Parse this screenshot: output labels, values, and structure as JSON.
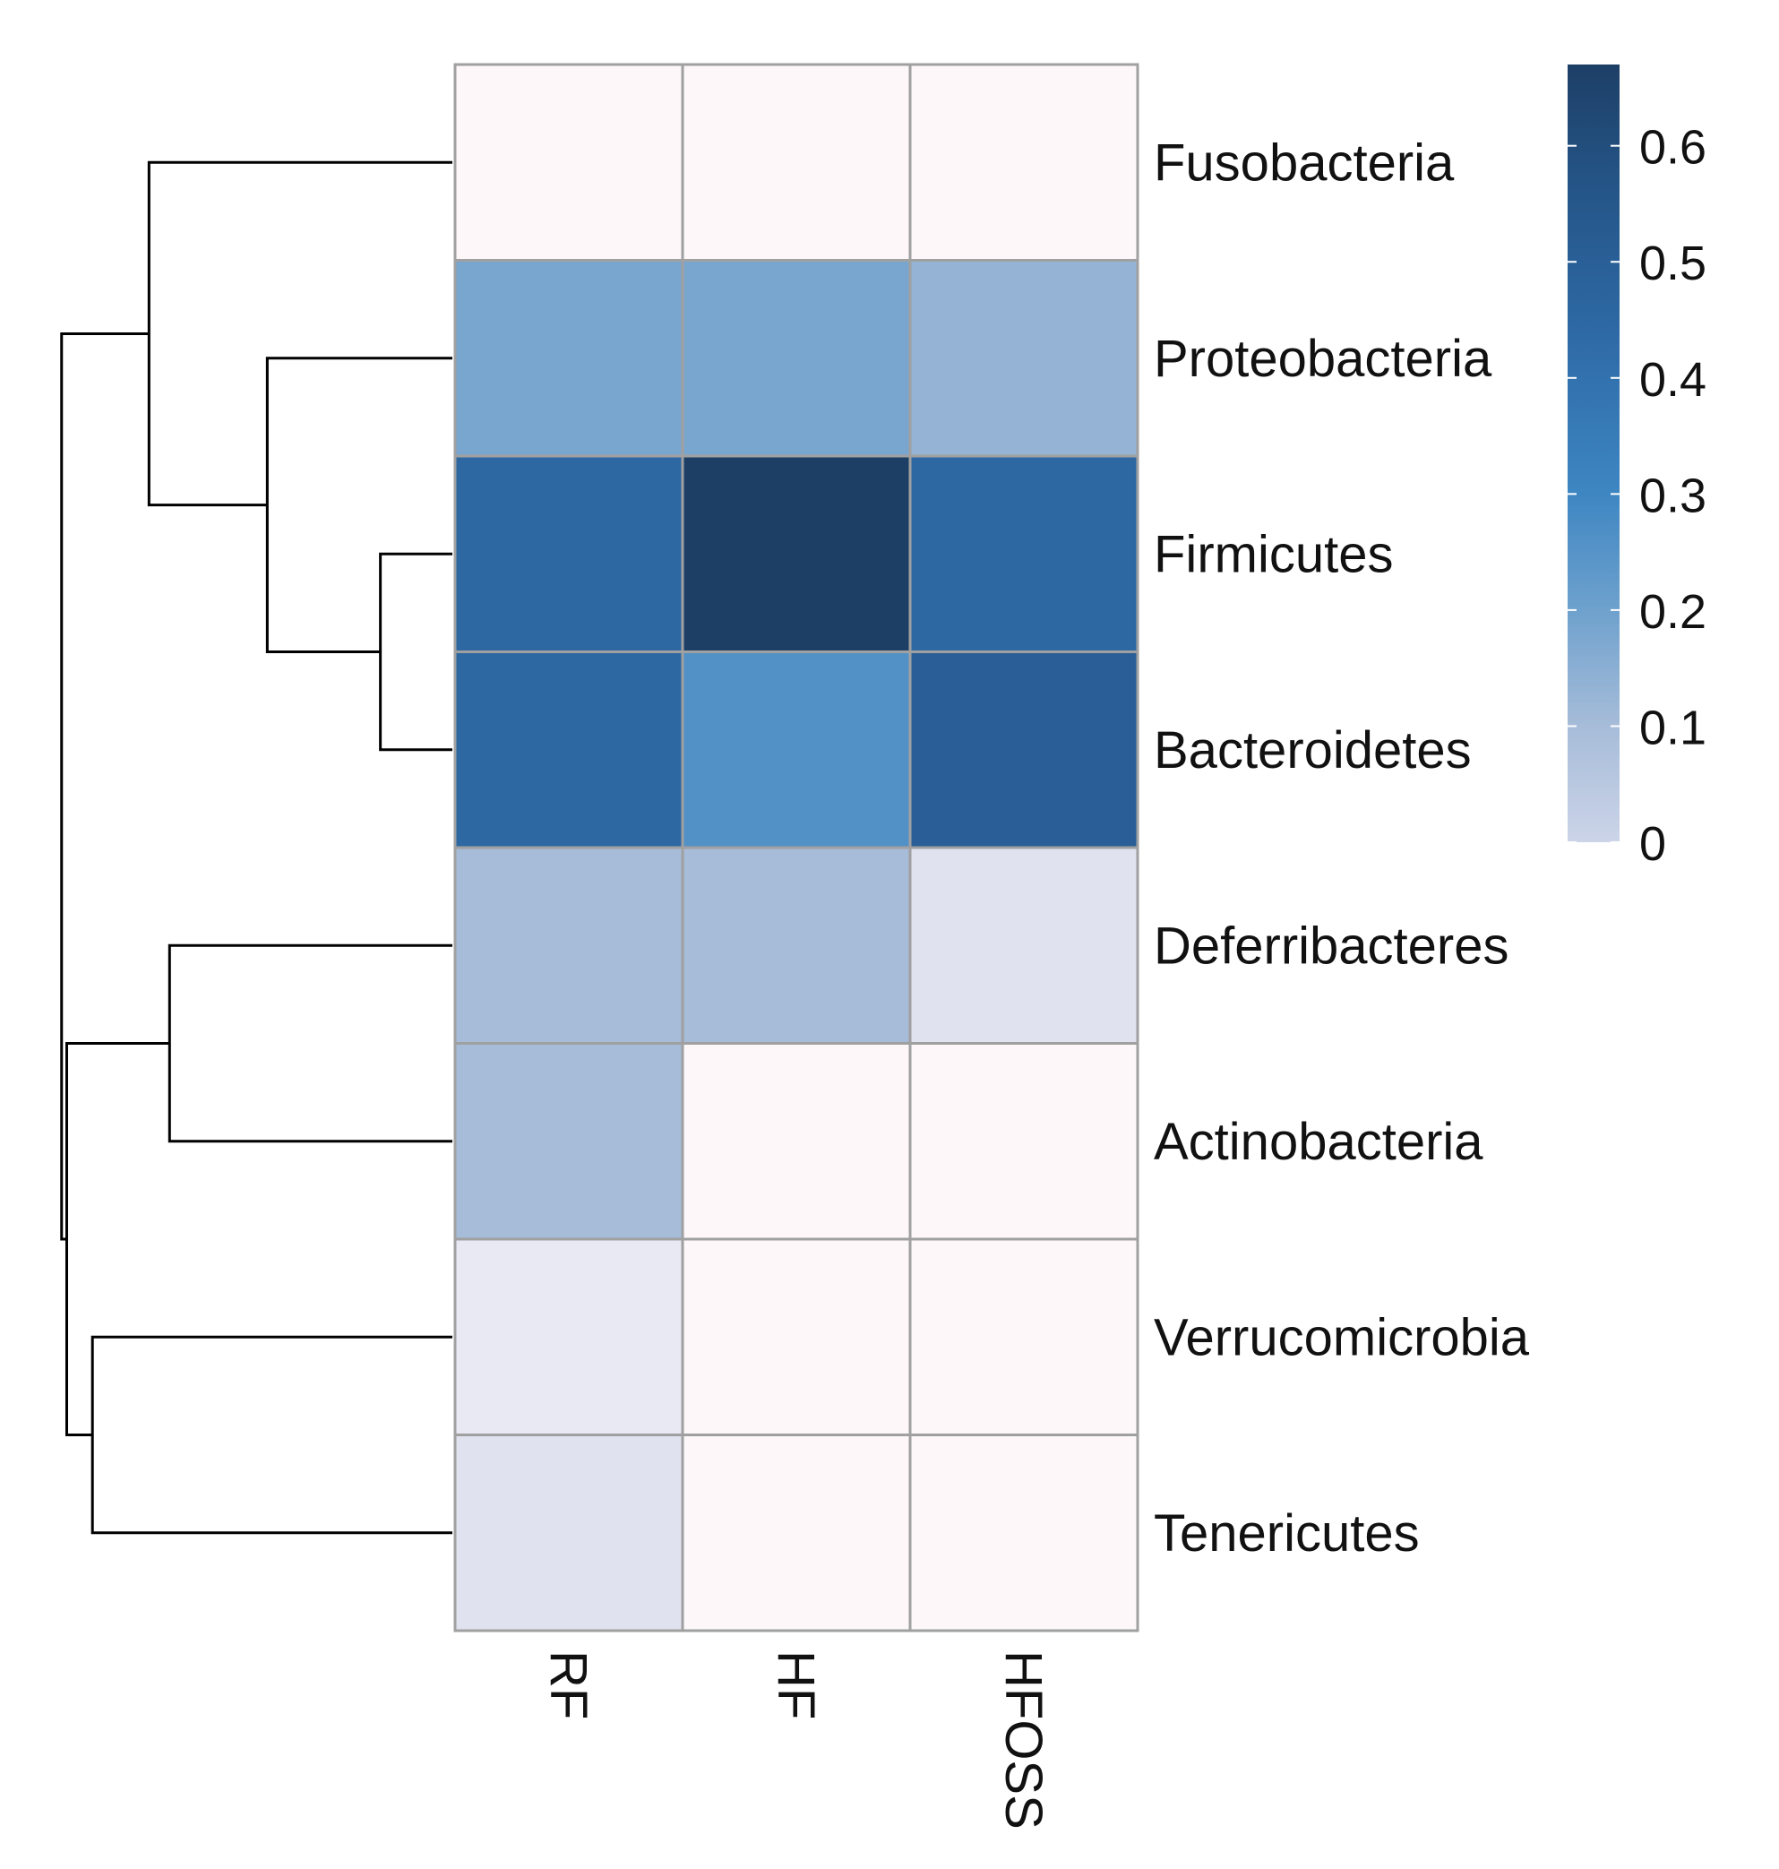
{
  "chart_data": {
    "type": "heatmap",
    "title": "",
    "columns": [
      "RF",
      "HF",
      "HFOSS"
    ],
    "rows": [
      "Fusobacteria",
      "Proteobacteria",
      "Firmicutes",
      "Bacteroidetes",
      "Deferribacteres",
      "Actinobacteria",
      "Verrucomicrobia",
      "Tenericutes"
    ],
    "values": [
      [
        0.0,
        0.0,
        0.0
      ],
      [
        0.18,
        0.18,
        0.13
      ],
      [
        0.46,
        0.67,
        0.46
      ],
      [
        0.46,
        0.26,
        0.5
      ],
      [
        0.1,
        0.1,
        0.03
      ],
      [
        0.1,
        0.0,
        0.0
      ],
      [
        0.02,
        0.0,
        0.0
      ],
      [
        0.03,
        0.0,
        0.0
      ]
    ],
    "colorbar": {
      "min": 0,
      "max": 0.67,
      "ticks": [
        0,
        0.1,
        0.2,
        0.3,
        0.4,
        0.5,
        0.6
      ],
      "tick_labels": [
        "0",
        "0.1",
        "0.2",
        "0.3",
        "0.4",
        "0.5",
        "0.6"
      ]
    },
    "dendrogram": {
      "side": "left",
      "merges": [
        {
          "left": "Firmicutes",
          "right": "Bacteroidetes",
          "height": 0.28
        },
        {
          "left": "Proteobacteria",
          "right": "Firmicutes+Bacteroidetes",
          "height": 0.72
        },
        {
          "left": "Fusobacteria",
          "right": "Proteobacteria+Firmicutes+Bacteroidetes",
          "height": 1.18
        },
        {
          "left": "Deferribacteres",
          "right": "Actinobacteria",
          "height": 1.1
        },
        {
          "left": "Verrucomicrobia",
          "right": "Tenericutes",
          "height": 1.4
        },
        {
          "left": "Deferribacteres+Actinobacteria",
          "right": "Verrucomicrobia+Tenericutes",
          "height": 1.5
        },
        {
          "left": "upper cluster",
          "right": "lower cluster",
          "height": 1.52
        }
      ]
    },
    "colors": {
      "low": "#c9d2e6",
      "zero": "#fdf7fa",
      "mid": "#3a85c0",
      "high": "#1d436c",
      "grid": "#a0a0a0"
    }
  }
}
